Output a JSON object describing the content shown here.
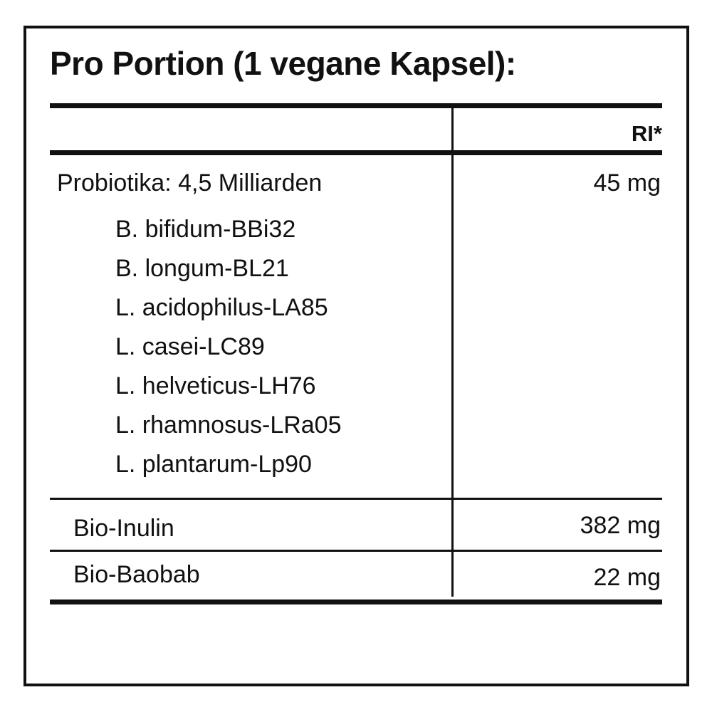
{
  "title": "Pro Portion (1 vegane Kapsel):",
  "table": {
    "header": {
      "col1": "",
      "col2": "RI*"
    },
    "probiotics": {
      "label": "Probiotika: 4,5 Milliarden",
      "amount": "45 mg",
      "strains": [
        "B. bifidum-BBi32",
        "B. longum-BL21",
        "L. acidophilus-LA85",
        "L. casei-LC89",
        "L. helveticus-LH76",
        "L. rhamnosus-LRa05",
        "L. plantarum-Lp90"
      ]
    },
    "rows": [
      {
        "label": "Bio-Inulin",
        "amount": "382 mg"
      },
      {
        "label": "Bio-Baobab",
        "amount": "22 mg"
      }
    ]
  }
}
